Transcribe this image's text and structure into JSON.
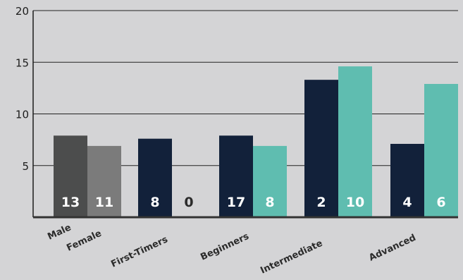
{
  "chart_data": {
    "type": "bar",
    "categories": [
      "Male",
      "Female",
      "First-Timers",
      "",
      "Beginners",
      "",
      "Intermediate",
      "",
      "Advanced",
      ""
    ],
    "values": [
      7.9,
      6.9,
      7.6,
      0,
      7.9,
      6.9,
      13.3,
      14.6,
      7.1,
      12.9
    ],
    "data_labels": [
      "13",
      "11",
      "8",
      "0",
      "17",
      "8",
      "2",
      "10",
      "4",
      "6"
    ],
    "colors": [
      "#4c4d4d",
      "#7b7b7b",
      "#12213a",
      "#12213a",
      "#12213a",
      "#5fbdb0",
      "#12213a",
      "#5fbdb0",
      "#12213a",
      "#5fbdb0"
    ],
    "label_colors": [
      "#ffffff",
      "#ffffff",
      "#ffffff",
      "#2b2b2b",
      "#ffffff",
      "#ffffff",
      "#ffffff",
      "#ffffff",
      "#ffffff",
      "#ffffff"
    ],
    "ylim": [
      0,
      20
    ],
    "yticks": [
      5,
      10,
      15,
      20
    ],
    "grid": true,
    "xlabel": "",
    "ylabel": "",
    "title": ""
  }
}
